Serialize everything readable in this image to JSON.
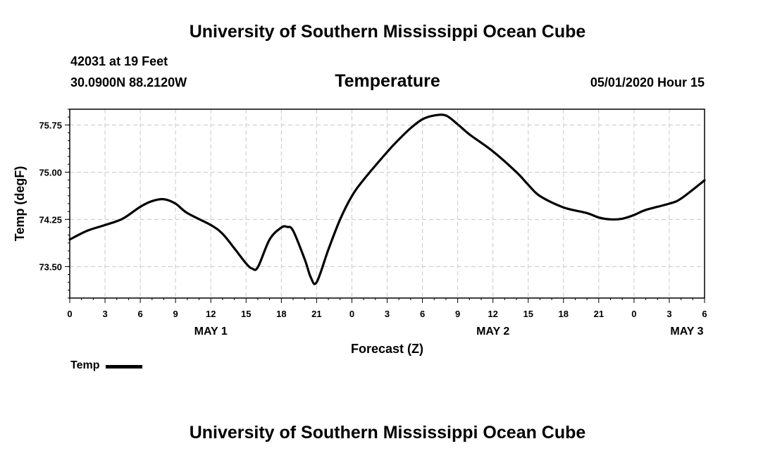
{
  "header": {
    "title": "University of Southern Mississippi Ocean Cube",
    "station": "42031 at 19 Feet",
    "coords": "30.0900N 88.2120W",
    "chart_title": "Temperature",
    "date": "05/01/2020 Hour 15"
  },
  "footer": {
    "title": "University of Southern Mississippi Ocean Cube"
  },
  "legend": {
    "label": "Temp"
  },
  "chart_data": {
    "type": "line",
    "title": "Temperature",
    "xlabel": "Forecast (Z)",
    "ylabel": "Temp (degF)",
    "x_unit": "hours from 0Z May 1",
    "xlim": [
      0,
      54
    ],
    "ylim": [
      73.0,
      76.0
    ],
    "yticks": [
      "73.50",
      "74.25",
      "75.00",
      "75.75"
    ],
    "ytick_values": [
      73.5,
      74.25,
      75.0,
      75.75
    ],
    "xticks": [
      {
        "x": 0,
        "label": "0"
      },
      {
        "x": 3,
        "label": "3"
      },
      {
        "x": 6,
        "label": "6"
      },
      {
        "x": 9,
        "label": "9"
      },
      {
        "x": 12,
        "label": "12"
      },
      {
        "x": 15,
        "label": "15"
      },
      {
        "x": 18,
        "label": "18"
      },
      {
        "x": 21,
        "label": "21"
      },
      {
        "x": 24,
        "label": "0"
      },
      {
        "x": 27,
        "label": "3"
      },
      {
        "x": 30,
        "label": "6"
      },
      {
        "x": 33,
        "label": "9"
      },
      {
        "x": 36,
        "label": "12"
      },
      {
        "x": 39,
        "label": "15"
      },
      {
        "x": 42,
        "label": "18"
      },
      {
        "x": 45,
        "label": "21"
      },
      {
        "x": 48,
        "label": "0"
      },
      {
        "x": 51,
        "label": "3"
      },
      {
        "x": 54,
        "label": "6"
      }
    ],
    "day_labels": [
      {
        "x": 12,
        "label": "MAY 1"
      },
      {
        "x": 36,
        "label": "MAY 2"
      },
      {
        "x": 52.5,
        "label": "MAY 3"
      }
    ],
    "grid": true,
    "legend_position": "bottom-left",
    "series": [
      {
        "name": "Temp",
        "color": "#000000",
        "x": [
          0,
          1.5,
          3,
          4.5,
          6,
          7,
          8,
          9,
          10,
          12,
          13,
          14,
          15,
          15.5,
          16,
          17,
          18,
          18.5,
          19,
          20,
          20.5,
          21,
          22,
          23,
          24,
          25,
          27,
          28,
          29,
          30,
          31,
          32,
          33,
          34,
          36,
          38,
          39,
          40,
          42,
          44,
          45,
          46,
          47,
          48,
          49,
          51,
          52,
          54
        ],
        "y": [
          73.93,
          74.07,
          74.16,
          74.26,
          74.45,
          74.54,
          74.57,
          74.5,
          74.35,
          74.16,
          74.02,
          73.79,
          73.55,
          73.47,
          73.49,
          73.93,
          74.12,
          74.13,
          74.07,
          73.61,
          73.33,
          73.25,
          73.77,
          74.25,
          74.62,
          74.88,
          75.32,
          75.52,
          75.7,
          75.84,
          75.9,
          75.9,
          75.76,
          75.6,
          75.33,
          75.0,
          74.8,
          74.62,
          74.44,
          74.35,
          74.28,
          74.25,
          74.26,
          74.32,
          74.4,
          74.5,
          74.58,
          74.87
        ]
      }
    ]
  }
}
